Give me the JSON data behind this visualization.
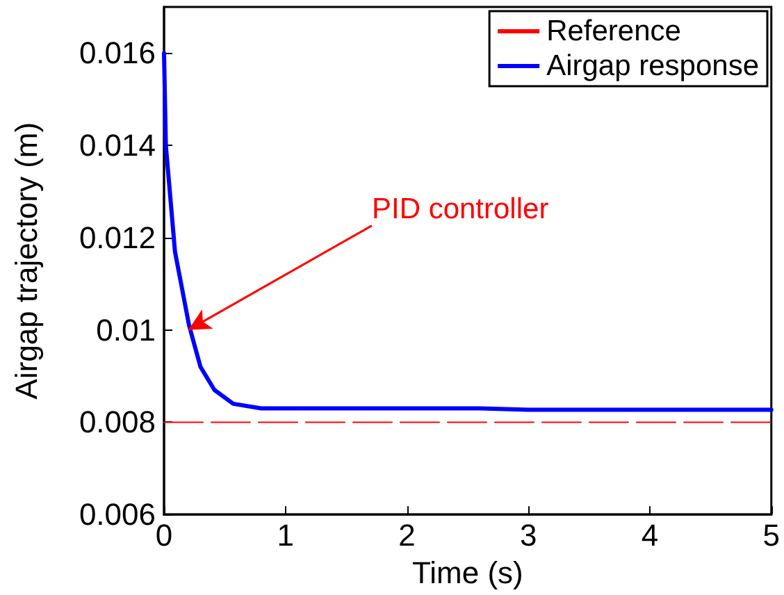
{
  "chart_data": {
    "type": "line",
    "xlabel": "Time (s)",
    "ylabel": "Airgap trajectory (m)",
    "xlim": [
      0,
      5
    ],
    "ylim": [
      0.006,
      0.017
    ],
    "xticks": [
      0,
      1,
      2,
      3,
      4,
      5
    ],
    "yticks": [
      0.006,
      0.008,
      0.01,
      0.012,
      0.014,
      0.016
    ],
    "grid": false,
    "legend": "top right",
    "marker": "none",
    "x": [
      0,
      0.015,
      0.09,
      0.206,
      0.3,
      0.415,
      0.57,
      0.8,
      1,
      2,
      2.6,
      3,
      4,
      5
    ],
    "series": [
      {
        "name": "Reference",
        "color": "#ff0000",
        "line_style": "dashed",
        "values": [
          0.008,
          0.008,
          0.008,
          0.008,
          0.008,
          0.008,
          0.008,
          0.008,
          0.008,
          0.008,
          0.008,
          0.008,
          0.008,
          0.008
        ]
      },
      {
        "name": "Airgap response",
        "color": "#0000ff",
        "line_style": "solid",
        "values": [
          0.016,
          0.014,
          0.0117,
          0.0101,
          0.0092,
          0.0087,
          0.0084,
          0.0083,
          0.0083,
          0.0083,
          0.0083,
          0.00827,
          0.00827,
          0.00827
        ]
      }
    ],
    "annotations": [
      {
        "text": "PID controller",
        "x": 0.2,
        "y": 0.01
      }
    ]
  }
}
